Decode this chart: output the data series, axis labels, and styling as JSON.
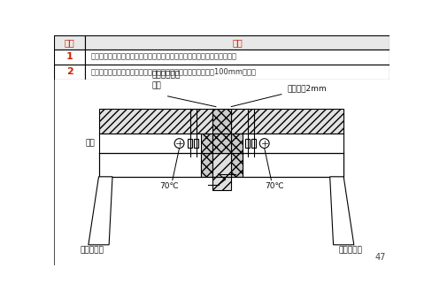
{
  "title_row": [
    "序号",
    "内容"
  ],
  "rows": [
    [
      "1",
      "穿越防火分隔处的变形缝两侧的通风、空气调节系统的风管上设置防火阀。"
    ],
    [
      "2",
      "穿越结构变形缝处的风管设置柔性短管，其长度大于变形缝宽度100mm以上。"
    ]
  ],
  "label_top_left": "柔性不燃材料\n密封",
  "label_top_right": "风管厚度2mm",
  "label_mid_left": "风管",
  "label_temp_left": "70℃",
  "label_temp_right": "70℃",
  "label_bottom_left": "耐高温软接",
  "label_bottom_right": "耐高温软接",
  "page_num": "47",
  "bg_color": "#ffffff",
  "line_color": "#000000",
  "table_header_bg": "#e0e0e0",
  "table_row_bg": "#ffffff",
  "header_text_color": "#cc2200",
  "num_text_color": "#cc2200",
  "body_text_color": "#333333",
  "diagram_bg": "#f5f5f5"
}
